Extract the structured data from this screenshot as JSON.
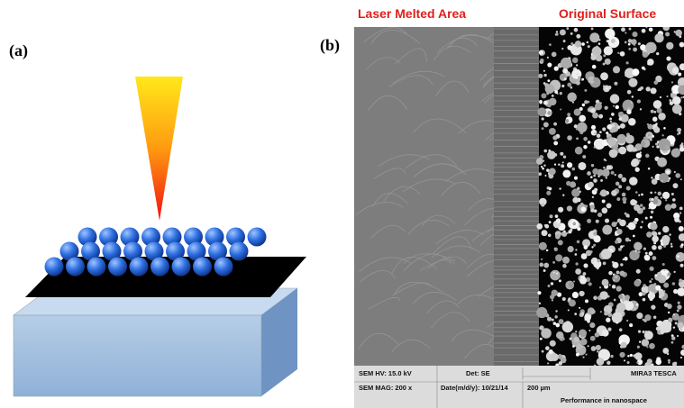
{
  "panels": {
    "a": {
      "label": "(a)"
    },
    "b": {
      "label": "(b)",
      "left_caption": "Laser Melted Area",
      "right_caption": "Original Surface",
      "info_bar": {
        "hv": "SEM HV: 15.0 kV",
        "det": "Det: SE",
        "brand": "MIRA3 TESCA",
        "mag": "SEM MAG: 200 x",
        "date": "Date(m/d/y): 10/21/14",
        "scale": "200 µm",
        "slogan": "Performance in nanospace"
      }
    }
  }
}
